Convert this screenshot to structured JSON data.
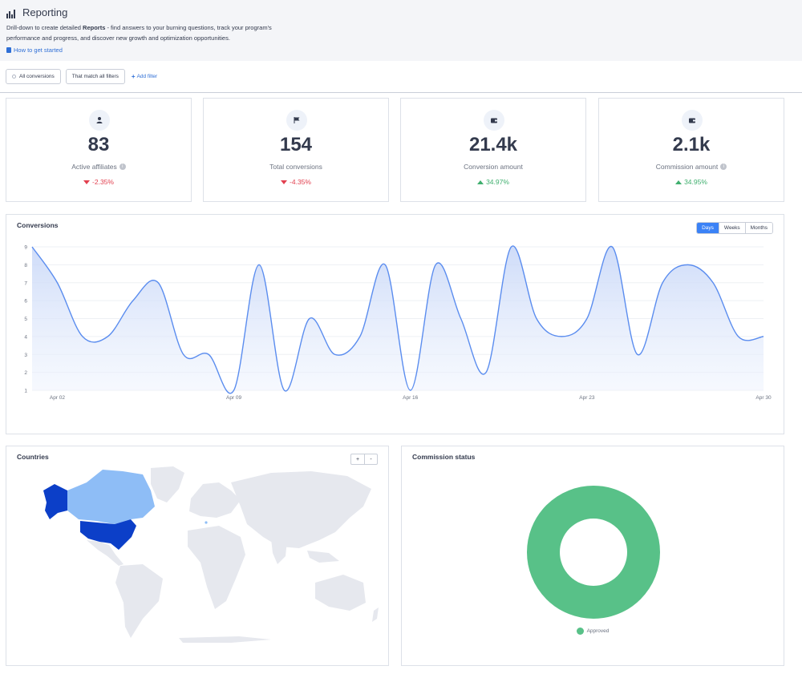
{
  "header": {
    "title": "Reporting",
    "description_pre": "Drill-down to create detailed ",
    "description_bold": "Reports",
    "description_post": " - find answers to your burning questions, track your program's performance and progress, and discover new growth and optimization opportunities.",
    "help_link": "How to get started"
  },
  "filters": {
    "all_conversions": "All conversions",
    "match_all": "That match all filters",
    "add_filter": "Add filter"
  },
  "stats": [
    {
      "value": "83",
      "label": "Active affiliates",
      "change": "-2.35%",
      "direction": "down",
      "info": true,
      "icon": "user-icon"
    },
    {
      "value": "154",
      "label": "Total conversions",
      "change": "-4.35%",
      "direction": "down",
      "info": false,
      "icon": "flag-icon"
    },
    {
      "value": "21.4k",
      "label": "Conversion amount",
      "change": "34.97%",
      "direction": "up",
      "info": false,
      "icon": "wallet-icon"
    },
    {
      "value": "2.1k",
      "label": "Commission amount",
      "change": "34.95%",
      "direction": "up",
      "info": true,
      "icon": "wallet-icon"
    }
  ],
  "conversions": {
    "title": "Conversions",
    "ranges": [
      "Days",
      "Weeks",
      "Months"
    ],
    "active_range": "Days"
  },
  "chart_data": {
    "type": "area",
    "title": "Conversions",
    "x": [
      "Apr 01",
      "Apr 02",
      "Apr 03",
      "Apr 04",
      "Apr 05",
      "Apr 06",
      "Apr 07",
      "Apr 08",
      "Apr 09",
      "Apr 10",
      "Apr 11",
      "Apr 12",
      "Apr 13",
      "Apr 14",
      "Apr 15",
      "Apr 16",
      "Apr 17",
      "Apr 18",
      "Apr 19",
      "Apr 20",
      "Apr 21",
      "Apr 22",
      "Apr 23",
      "Apr 24",
      "Apr 25",
      "Apr 26",
      "Apr 27",
      "Apr 28",
      "Apr 29",
      "Apr 30"
    ],
    "values": [
      9,
      7,
      4,
      4,
      6,
      7,
      3,
      3,
      1,
      8,
      1,
      5,
      3,
      4,
      8,
      1,
      8,
      5,
      2,
      9,
      5,
      4,
      5,
      9,
      3,
      7,
      8,
      7,
      4,
      4
    ],
    "xticks": [
      "Apr 02",
      "Apr 09",
      "Apr 16",
      "Apr 23",
      "Apr 30"
    ],
    "yticks": [
      1,
      2,
      3,
      4,
      5,
      6,
      7,
      8,
      9
    ],
    "ylim": [
      1,
      9
    ],
    "grid": true,
    "color": "#5b8def"
  },
  "countries": {
    "title": "Countries",
    "zoom_in": "+",
    "zoom_out": "-"
  },
  "commission_status": {
    "title": "Commission status",
    "legend": "Approved",
    "color": "#58c188"
  }
}
